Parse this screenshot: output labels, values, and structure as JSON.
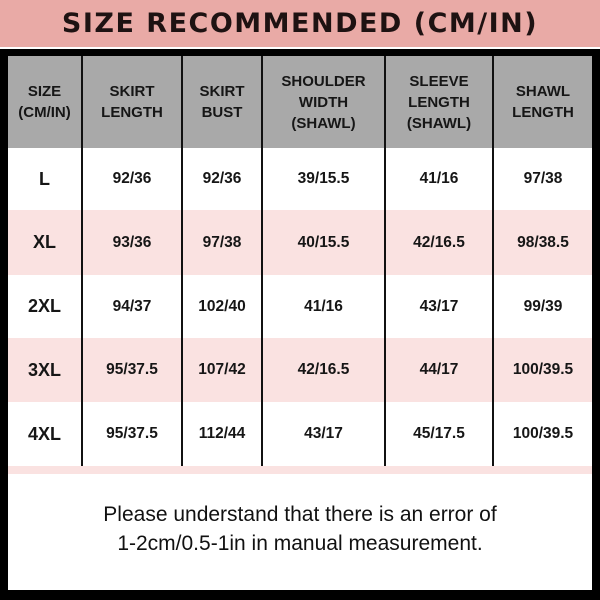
{
  "title": "SIZE RECOMMENDED (CM/IN)",
  "colors": {
    "banner": "#e9aaa6",
    "header": "#a9a9a9",
    "pink_row": "#fae2e1",
    "frame": "#000000"
  },
  "table": {
    "headers": [
      [
        "SIZE",
        "(CM/IN)"
      ],
      [
        "SKIRT",
        "LENGTH"
      ],
      [
        "SKIRT",
        "BUST"
      ],
      [
        "SHOULDER",
        "WIDTH",
        "(SHAWL)"
      ],
      [
        "SLEEVE",
        "LENGTH",
        "(SHAWL)"
      ],
      [
        "SHAWL",
        "LENGTH"
      ]
    ],
    "rows": [
      [
        "L",
        "92/36",
        "92/36",
        "39/15.5",
        "41/16",
        "97/38"
      ],
      [
        "XL",
        "93/36",
        "97/38",
        "40/15.5",
        "42/16.5",
        "98/38.5"
      ],
      [
        "2XL",
        "94/37",
        "102/40",
        "41/16",
        "43/17",
        "99/39"
      ],
      [
        "3XL",
        "95/37.5",
        "107/42",
        "42/16.5",
        "44/17",
        "100/39.5"
      ],
      [
        "4XL",
        "95/37.5",
        "112/44",
        "43/17",
        "45/17.5",
        "100/39.5"
      ]
    ]
  },
  "note": [
    "Please understand that there is an error of",
    "1-2cm/0.5-1in in manual measurement."
  ]
}
